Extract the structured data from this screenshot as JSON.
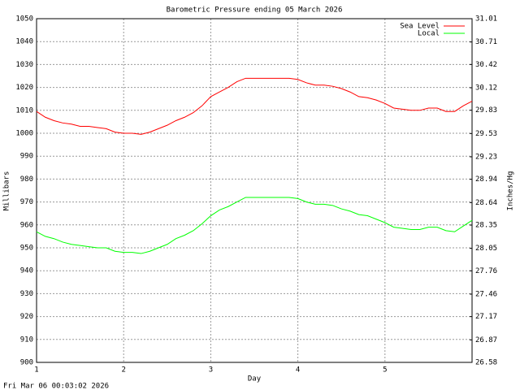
{
  "chart_data": {
    "type": "line",
    "title": "Barometric Pressure ending 05 March 2026",
    "xlabel": "Day",
    "ylabel": "Millibars",
    "y2label": "Inches/Hg",
    "footer": "Fri Mar 06 00:03:02 2026",
    "x": [
      1.0,
      1.1,
      1.2,
      1.3,
      1.4,
      1.5,
      1.6,
      1.7,
      1.8,
      1.9,
      2.0,
      2.1,
      2.2,
      2.3,
      2.4,
      2.5,
      2.6,
      2.7,
      2.8,
      2.9,
      3.0,
      3.1,
      3.2,
      3.3,
      3.4,
      3.5,
      3.6,
      3.7,
      3.8,
      3.9,
      4.0,
      4.1,
      4.2,
      4.3,
      4.4,
      4.5,
      4.6,
      4.7,
      4.8,
      4.9,
      5.0,
      5.1,
      5.2,
      5.3,
      5.4,
      5.5,
      5.6,
      5.7,
      5.8,
      5.9,
      6.0
    ],
    "series": [
      {
        "name": "Sea Level",
        "color": "#ff0000",
        "values": [
          1009.5,
          1007,
          1005.5,
          1004.5,
          1004,
          1003,
          1003,
          1002.5,
          1002,
          1000.5,
          1000,
          1000,
          999.5,
          1000.5,
          1002,
          1003.5,
          1005.5,
          1007,
          1009,
          1012,
          1016,
          1018,
          1020,
          1022.5,
          1024,
          1024,
          1024,
          1024,
          1024,
          1024,
          1023.5,
          1022,
          1021,
          1021,
          1020.5,
          1019.5,
          1018,
          1016,
          1015.5,
          1014.5,
          1013,
          1011,
          1010.5,
          1010,
          1010,
          1011,
          1011,
          1009.5,
          1009.5,
          1012,
          1014
        ]
      },
      {
        "name": "Local",
        "color": "#00ff00",
        "values": [
          957,
          955,
          954,
          952.5,
          951.5,
          951,
          950.5,
          950,
          950,
          948.5,
          948,
          948,
          947.5,
          948.5,
          950,
          951.5,
          954,
          955.5,
          957.5,
          960.5,
          964,
          966.5,
          968,
          970,
          972,
          972,
          972,
          972,
          972,
          972,
          971.5,
          970,
          969,
          969,
          968.5,
          967,
          966,
          964.5,
          964,
          962.5,
          961,
          959,
          958.5,
          958,
          958,
          959,
          959,
          957.5,
          957,
          959.5,
          962
        ]
      }
    ],
    "xlim": [
      1,
      6
    ],
    "xticks": [
      1,
      2,
      3,
      4,
      5
    ],
    "ylim": [
      900,
      1050
    ],
    "yticks": [
      900,
      910,
      920,
      930,
      940,
      950,
      960,
      970,
      980,
      990,
      1000,
      1010,
      1020,
      1030,
      1040,
      1050
    ],
    "y2lim": [
      26.58,
      31.01
    ],
    "y2ticks": [
      26.58,
      26.87,
      27.17,
      27.46,
      27.76,
      28.05,
      28.35,
      28.64,
      28.94,
      29.23,
      29.53,
      29.83,
      30.12,
      30.42,
      30.71,
      31.01
    ],
    "grid": true,
    "legend": "top-right"
  }
}
